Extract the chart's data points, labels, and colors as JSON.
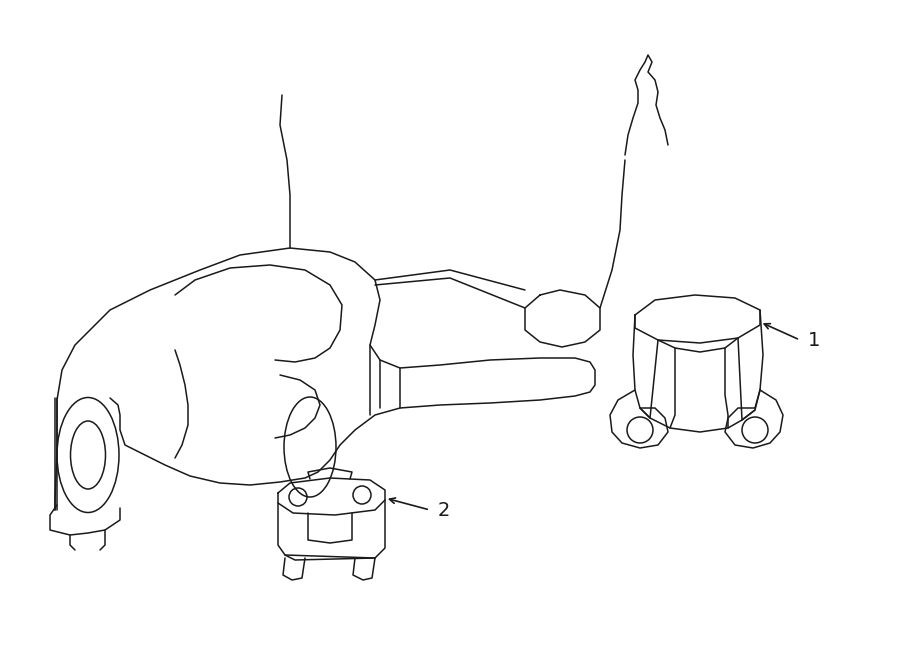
{
  "bg_color": "#ffffff",
  "line_color": "#1a1a1a",
  "line_width": 1.1,
  "fig_width": 9.0,
  "fig_height": 6.61,
  "dpi": 100,
  "label1_text": "1",
  "label2_text": "2"
}
